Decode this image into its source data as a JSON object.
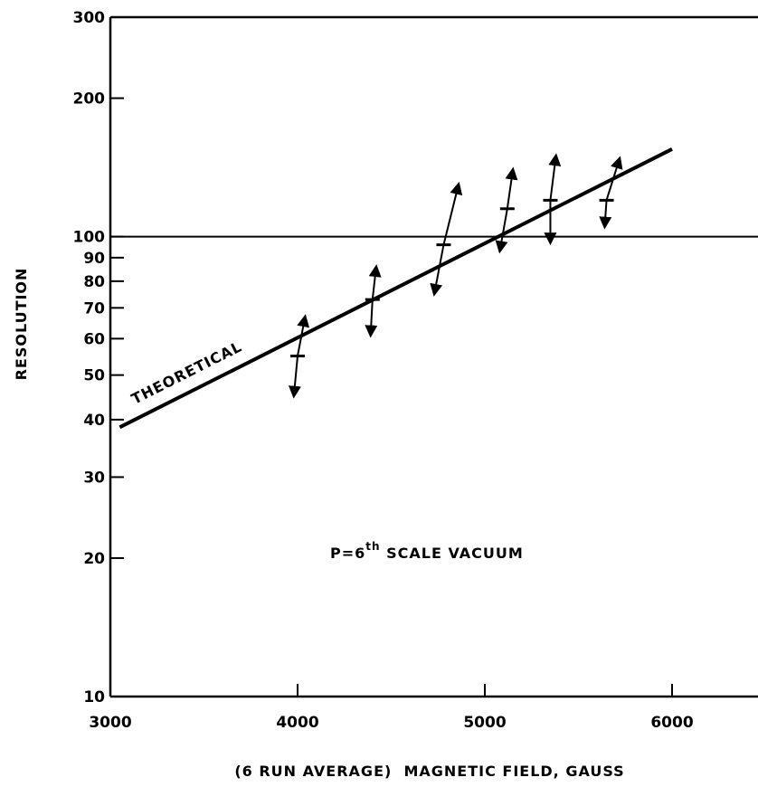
{
  "chart_data": {
    "type": "scatter",
    "x_scale": "linear",
    "y_scale": "log",
    "xlim": [
      3000,
      6500
    ],
    "ylim": [
      10,
      300
    ],
    "x_ticks": [
      3000,
      4000,
      5000,
      6000
    ],
    "y_ticks": [
      10,
      20,
      30,
      40,
      50,
      60,
      70,
      80,
      90,
      100,
      200,
      300
    ],
    "x_tick_labels": [
      "3000",
      "4000",
      "5000",
      "6000"
    ],
    "y_tick_labels": [
      "10",
      "20",
      "30",
      "40",
      "50",
      "60",
      "70",
      "80",
      "90",
      "100",
      "200",
      "300"
    ],
    "xlabel": "(6 RUN AVERAGE)  MAGNETIC FIELD, GAUSS",
    "ylabel": "RESOLUTION",
    "reference_line_y": 100,
    "annotation": {
      "prefix": "P=6",
      "superscript": "th",
      "suffix": " SCALE VACUUM"
    },
    "theoretical": {
      "name": "THEORETICAL",
      "x": [
        3050,
        6000
      ],
      "y": [
        38.5,
        155
      ]
    },
    "measured": {
      "x": [
        4000,
        4400,
        4780,
        5120,
        5350,
        5650
      ],
      "y": [
        55,
        73,
        96,
        115,
        120,
        120
      ],
      "error_low": [
        {
          "x": 3980,
          "y": 45
        },
        {
          "x": 4390,
          "y": 61
        },
        {
          "x": 4730,
          "y": 75
        },
        {
          "x": 5080,
          "y": 93
        },
        {
          "x": 5350,
          "y": 97
        },
        {
          "x": 5640,
          "y": 105
        }
      ],
      "error_high": [
        {
          "x": 4040,
          "y": 67
        },
        {
          "x": 4420,
          "y": 86
        },
        {
          "x": 4860,
          "y": 130
        },
        {
          "x": 5150,
          "y": 140
        },
        {
          "x": 5380,
          "y": 150
        },
        {
          "x": 5720,
          "y": 148
        }
      ]
    }
  }
}
